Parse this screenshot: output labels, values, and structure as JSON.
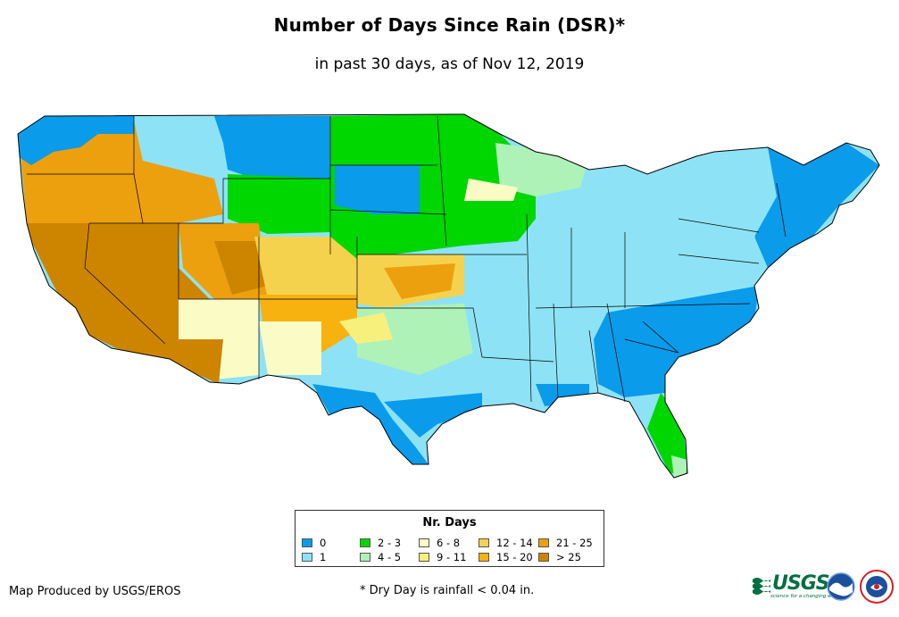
{
  "header": {
    "title": "Number of Days Since Rain (DSR)*",
    "subtitle": "in past 30 days, as of Nov 12, 2019"
  },
  "legend": {
    "title": "Nr. Days",
    "items": [
      {
        "label": "0",
        "color": "#0a9bea"
      },
      {
        "label": "1",
        "color": "#8de3f5"
      },
      {
        "label": "2 - 3",
        "color": "#00d600"
      },
      {
        "label": "4 - 5",
        "color": "#aef2b8"
      },
      {
        "label": "6 - 8",
        "color": "#fbfbc6"
      },
      {
        "label": "9 - 11",
        "color": "#f8f07c"
      },
      {
        "label": "12 - 14",
        "color": "#f5d24e"
      },
      {
        "label": "15 - 20",
        "color": "#f7b20f"
      },
      {
        "label": "21 - 25",
        "color": "#eca00e"
      },
      {
        "label": "> 25",
        "color": "#cd8500"
      }
    ]
  },
  "footer": {
    "credit": "Map Produced by USGS/EROS",
    "note": "* Dry Day is rainfall < 0.04 in."
  },
  "logos": {
    "usgs": "USGS",
    "usgs_tagline": "science for a changing world",
    "noaa": "noaa-logo",
    "nws": "nws-logo"
  }
}
